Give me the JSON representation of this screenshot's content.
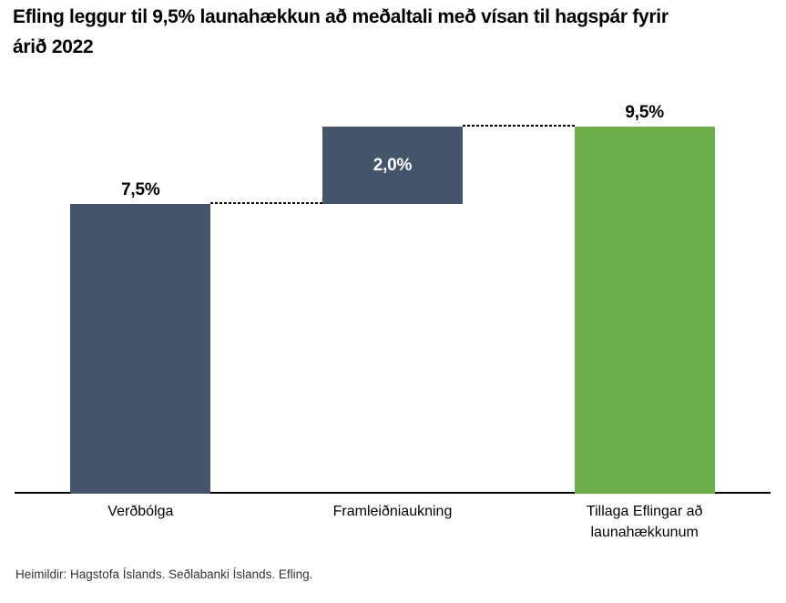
{
  "title": "Efling leggur til 9,5% launahækkun að meðaltali með vísan til hagspár fyrir\nárið 2022",
  "source_note": "Heimildir: Hagstofa Íslands. Seðlabanki Íslands. Efling.",
  "colors": {
    "bar_dark": "#44546A",
    "bar_green": "#6CAC49",
    "axis": "#000000",
    "label_dark": "#000000",
    "label_light": "#FFFFFF",
    "source_text": "#333333",
    "background": "#FFFFFF"
  },
  "chart_data": {
    "type": "bar",
    "subtype": "waterfall",
    "title": "Efling leggur til 9,5% launahækkun að meðaltali með vísan til hagspár fyrir árið 2022",
    "xlabel": "",
    "ylabel": "",
    "ylim": [
      0,
      10
    ],
    "gridlines": false,
    "legend": null,
    "unit": "%",
    "categories": [
      "Verðbólga",
      "Framleiðniaukning",
      "Tillaga Eflingar að\nlaunahækkunum"
    ],
    "series": [
      {
        "name": "Verðbólga",
        "start": 0,
        "end": 7.5,
        "value": 7.5,
        "label": "7,5%",
        "color": "#44546A",
        "label_position": "above",
        "label_color": "#000000"
      },
      {
        "name": "Framleiðniaukning",
        "start": 7.5,
        "end": 9.5,
        "value": 2.0,
        "label": "2,0%",
        "color": "#44546A",
        "label_position": "inside",
        "label_color": "#FFFFFF"
      },
      {
        "name": "Tillaga Eflingar að launahækkunum",
        "start": 0,
        "end": 9.5,
        "value": 9.5,
        "label": "9,5%",
        "color": "#6CAC49",
        "label_position": "above",
        "label_color": "#000000"
      }
    ],
    "connectors": [
      {
        "from_bar": 0,
        "to_bar": 1,
        "level": 7.5,
        "style": "dashed"
      },
      {
        "from_bar": 1,
        "to_bar": 2,
        "level": 9.5,
        "style": "dashed"
      }
    ]
  }
}
